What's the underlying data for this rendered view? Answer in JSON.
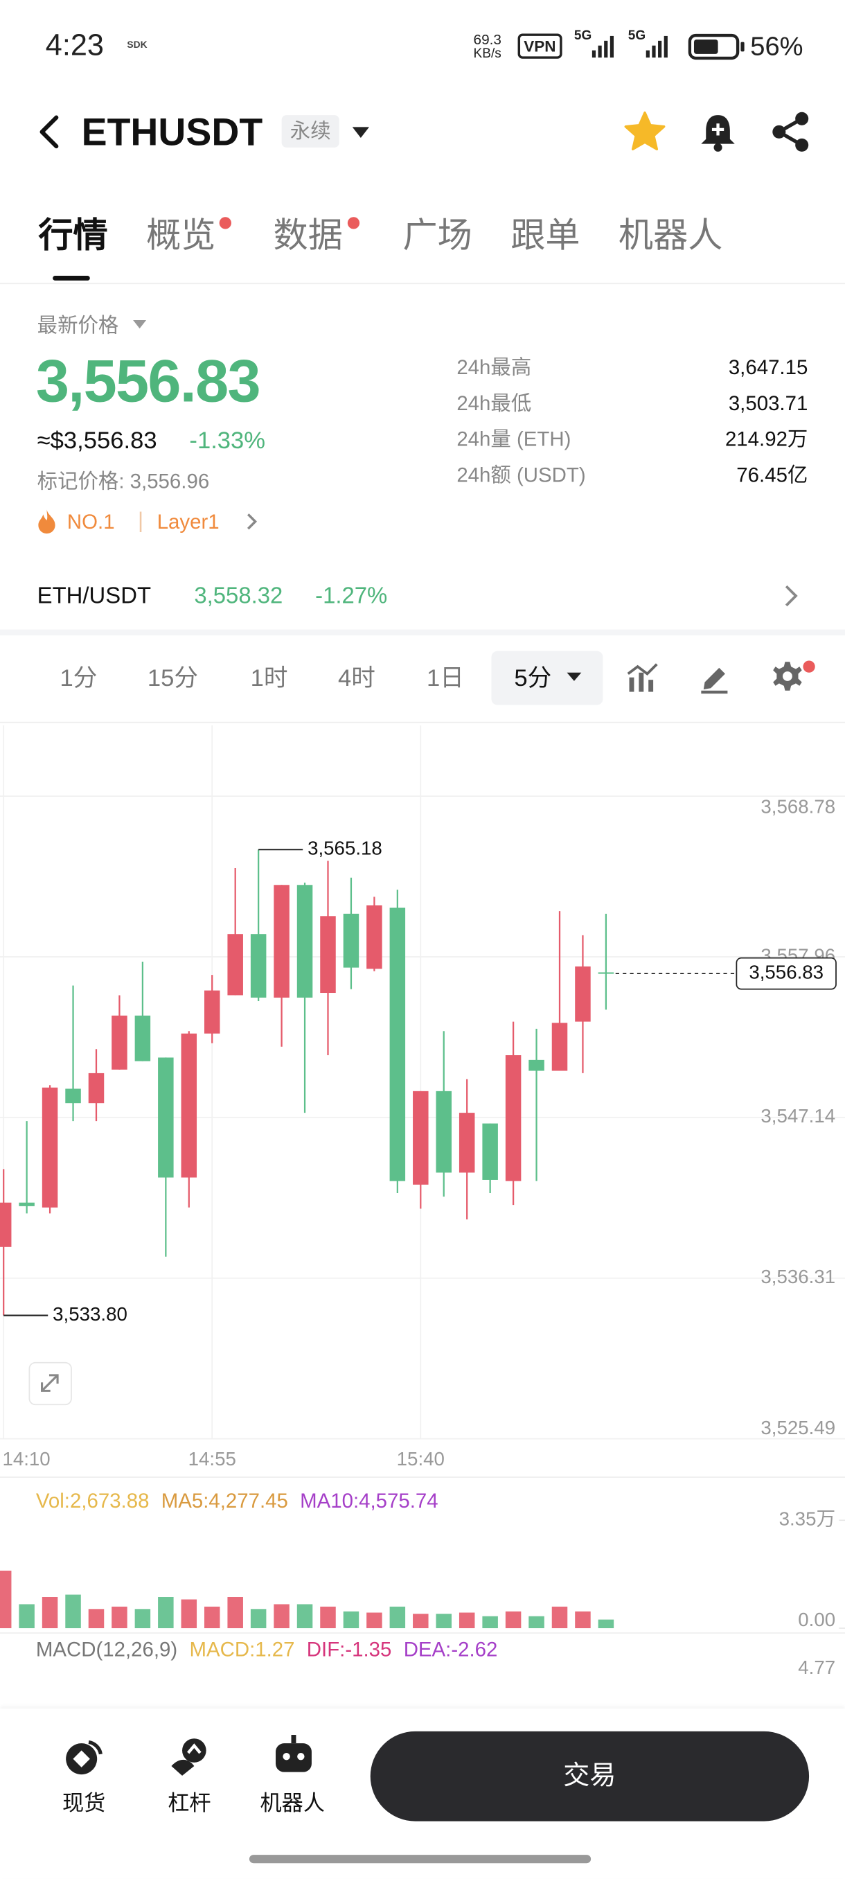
{
  "status_bar": {
    "time": "4:23",
    "sdk": "SDK",
    "speed": "69.3",
    "speed_unit": "KB/s",
    "vpn": "VPN",
    "net1": "5G",
    "net2": "5G",
    "battery": "56%"
  },
  "header": {
    "symbol": "ETHUSDT",
    "badge": "永续"
  },
  "tabs": [
    "行情",
    "概览",
    "数据",
    "广场",
    "跟单",
    "机器人"
  ],
  "price": {
    "label": "最新价格",
    "last": "3,556.83",
    "usd": "≈$3,556.83",
    "change": "-1.33%",
    "mark": "标记价格: 3,556.96",
    "rank": "NO.1",
    "sector": "Layer1"
  },
  "stats": [
    {
      "label": "24h最高",
      "value": "3,647.15"
    },
    {
      "label": "24h最低",
      "value": "3,503.71"
    },
    {
      "label": "24h量 (ETH)",
      "value": "214.92万"
    },
    {
      "label": "24h额 (USDT)",
      "value": "76.45亿"
    }
  ],
  "spot": {
    "pair": "ETH/USDT",
    "price": "3,558.32",
    "change": "-1.27%"
  },
  "intervals": [
    "1分",
    "15分",
    "1时",
    "4时",
    "1日"
  ],
  "selected_interval": "5分",
  "chart_data": [
    {
      "type": "candlestick",
      "categories": [
        "14:10",
        null,
        null,
        null,
        null,
        null,
        null,
        null,
        null,
        "14:55",
        null,
        null,
        null,
        null,
        null,
        null,
        null,
        null,
        "15:40",
        null,
        null,
        null,
        null,
        null,
        null,
        null,
        null
      ],
      "open": [
        3538.41,
        3541.4,
        3541.07,
        3549.07,
        3548.1,
        3550.36,
        3554.0,
        3551.17,
        3543.09,
        3552.79,
        3555.37,
        3559.49,
        3555.21,
        3562.8,
        3555.53,
        3560.86,
        3557.15,
        3561.27,
        3542.61,
        3548.91,
        3543.42,
        3546.73,
        3542.85,
        3551.01,
        3550.28,
        3553.59,
        3556.91
      ],
      "high": [
        3543.66,
        3546.89,
        3549.31,
        3556.02,
        3551.74,
        3555.37,
        3557.63,
        3551.17,
        3552.95,
        3556.74,
        3563.93,
        3565.18,
        3562.8,
        3562.96,
        3564.42,
        3563.29,
        3562.0,
        3562.48,
        3548.91,
        3552.95,
        3549.72,
        3546.73,
        3553.59,
        3553.11,
        3561.03,
        3559.41,
        3560.86
      ],
      "low": [
        3533.8,
        3540.67,
        3540.67,
        3546.89,
        3546.89,
        3550.36,
        3550.93,
        3537.76,
        3541.07,
        3552.14,
        3555.37,
        3554.97,
        3551.9,
        3547.45,
        3551.33,
        3555.78,
        3556.99,
        3542.04,
        3540.99,
        3541.8,
        3540.27,
        3542.04,
        3541.24,
        3542.85,
        3550.28,
        3550.12,
        3554.4
      ],
      "close": [
        3541.4,
        3541.16,
        3549.15,
        3548.1,
        3550.12,
        3554.0,
        3550.93,
        3543.09,
        3552.79,
        3555.69,
        3559.49,
        3555.21,
        3562.8,
        3555.21,
        3560.7,
        3557.23,
        3561.43,
        3542.85,
        3548.91,
        3543.42,
        3547.45,
        3542.93,
        3551.33,
        3550.28,
        3553.51,
        3557.31,
        3556.83
      ],
      "up_color": "#e55b6b",
      "down_color": "#5dbf8b",
      "ylim": [
        3525.49,
        3573.55
      ],
      "yticks": [
        {
          "value": 3568.78,
          "label": "3,568.78"
        },
        {
          "value": 3557.96,
          "label": "3,557.96"
        },
        {
          "value": 3547.14,
          "label": "3,547.14"
        },
        {
          "value": 3536.31,
          "label": "3,536.31"
        },
        {
          "value": 3525.49,
          "label": "3,525.49"
        }
      ],
      "grid": true,
      "annotations": [
        {
          "value": 3565.18,
          "label": "3,565.18"
        },
        {
          "value": 3533.8,
          "label": "3,533.80"
        }
      ],
      "last_price": {
        "value": 3556.83,
        "label": "3,556.83"
      }
    },
    {
      "type": "bar",
      "legend": [
        {
          "text": "Vol:2,673.88",
          "color": "#e6b84b"
        },
        {
          "text": "MA5:4,277.45",
          "color": "#d99a3f"
        },
        {
          "text": "MA10:4,575.74",
          "color": "#a53fc8"
        }
      ],
      "values": [
        17870,
        7440,
        9680,
        10420,
        5960,
        6700,
        5960,
        9680,
        8930,
        6700,
        9680,
        5960,
        7440,
        7440,
        6700,
        5210,
        4840,
        6700,
        4470,
        4470,
        4840,
        3720,
        5210,
        3720,
        6700,
        5210,
        2673.88
      ],
      "ylim": [
        0,
        33500
      ],
      "yticks": [
        {
          "value": 33500,
          "label": "3.35万"
        },
        {
          "value": 0,
          "label": "0.00"
        }
      ]
    },
    {
      "type": "macd",
      "legend": [
        {
          "text": "MACD(12,26,9)",
          "color": "#777777"
        },
        {
          "text": "MACD:1.27",
          "color": "#e6b84b"
        },
        {
          "text": "DIF:-1.35",
          "color": "#d6357c"
        },
        {
          "text": "DEA:-2.62",
          "color": "#a53fc8"
        }
      ],
      "yticks": [
        4.77
      ]
    }
  ],
  "nav": [
    "现货",
    "杠杆",
    "机器人"
  ],
  "trade_button": "交易"
}
